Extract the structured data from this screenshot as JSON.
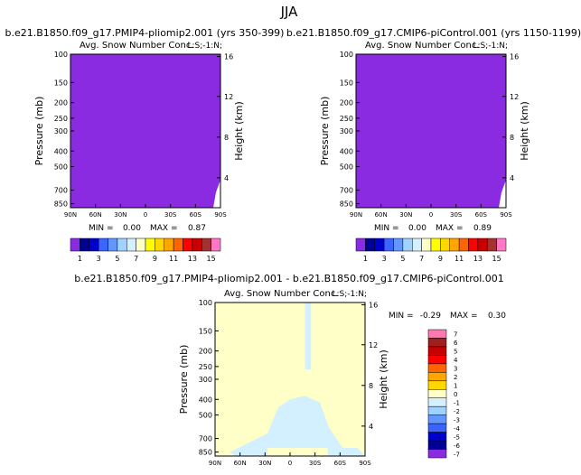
{
  "figure": {
    "title": "JJA"
  },
  "chart_data": [
    {
      "type": "heatmap",
      "title": "b.e21.B1850.f09_g17.PMIP4-pliomip2.001 (yrs 350-399)",
      "subtitle": "Avg. Snow Number Conc.",
      "mask_label": "L:S;-1:N;",
      "ylabel": "Pressure (mb)",
      "ylabel_right": "Height (km)",
      "x_ticks": [
        "90N",
        "60N",
        "30N",
        "0",
        "30S",
        "60S",
        "90S"
      ],
      "y_ticks": [
        "100",
        "150",
        "200",
        "250",
        "300",
        "400",
        "500",
        "700",
        "850"
      ],
      "y_ticks_right": [
        "16",
        "12",
        "8",
        "4"
      ],
      "stats": {
        "min_label": "MIN =",
        "min": "0.00",
        "max_label": "MAX =",
        "max": "0.87"
      },
      "colorbar_labels": [
        "1",
        "3",
        "5",
        "7",
        "9",
        "11",
        "13",
        "15"
      ],
      "dominant_value": 0.0
    },
    {
      "type": "heatmap",
      "title": "b.e21.B1850.f09_g17.CMIP6-piControl.001 (yrs 1150-1199)",
      "subtitle": "Avg. Snow Number Conc.",
      "mask_label": "L:S;-1:N;",
      "ylabel": "Pressure (mb)",
      "ylabel_right": "Height (km)",
      "x_ticks": [
        "90N",
        "60N",
        "30N",
        "0",
        "30S",
        "60S",
        "90S"
      ],
      "y_ticks": [
        "100",
        "150",
        "200",
        "250",
        "300",
        "400",
        "500",
        "700",
        "850"
      ],
      "y_ticks_right": [
        "16",
        "12",
        "8",
        "4"
      ],
      "stats": {
        "min_label": "MIN =",
        "min": "0.00",
        "max_label": "MAX =",
        "max": "0.89"
      },
      "colorbar_labels": [
        "1",
        "3",
        "5",
        "7",
        "9",
        "11",
        "13",
        "15"
      ],
      "dominant_value": 0.0
    },
    {
      "type": "heatmap",
      "title": "b.e21.B1850.f09_g17.PMIP4-pliomip2.001 - b.e21.B1850.f09_g17.CMIP6-piControl.001",
      "subtitle": "Avg. Snow Number Conc.",
      "mask_label": "L:S;-1:N;",
      "ylabel": "Pressure (mb)",
      "ylabel_right": "Height (km)",
      "x_ticks": [
        "90N",
        "60N",
        "30N",
        "0",
        "30S",
        "60S",
        "90S"
      ],
      "y_ticks": [
        "100",
        "150",
        "200",
        "250",
        "300",
        "400",
        "500",
        "700",
        "850"
      ],
      "y_ticks_right": [
        "16",
        "12",
        "8",
        "4"
      ],
      "stats": {
        "min_label": "MIN =",
        "min": "-0.29",
        "max_label": "MAX =",
        "max": "0.30"
      },
      "colorbar_labels": [
        "7",
        "6",
        "5",
        "4",
        "3",
        "2",
        "1",
        "0",
        "-1",
        "-2",
        "-3",
        "-4",
        "-5",
        "-6",
        "-7"
      ],
      "dominant_value": 0.0
    }
  ],
  "colors": {
    "seq_colorbar": [
      "#8a2be2",
      "#000096",
      "#0000cd",
      "#3c64ff",
      "#6496ff",
      "#a0d2ff",
      "#d2f0ff",
      "#ffffc8",
      "#ffff00",
      "#ffd700",
      "#ffa500",
      "#ff6400",
      "#ff0000",
      "#c80000",
      "#a03232",
      "#ff78c8"
    ],
    "div_colorbar": [
      "#ff78b4",
      "#a01e1e",
      "#c80000",
      "#ff0000",
      "#ff6400",
      "#ffa500",
      "#ffd700",
      "#ffffc8",
      "#d2f0ff",
      "#a0d2ff",
      "#6496ff",
      "#3c64ff",
      "#0000cd",
      "#000096",
      "#8a2be2"
    ],
    "panel_fill": "#8a2be2",
    "diff_fill": "#ffffc8",
    "diff_neg": "#d2f0ff"
  }
}
